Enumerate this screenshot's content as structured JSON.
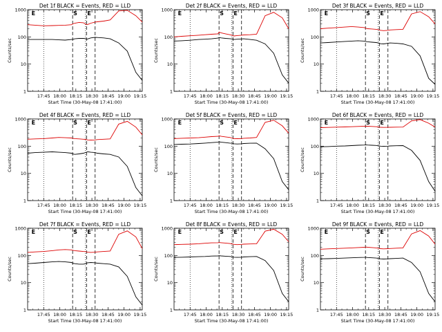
{
  "chart_data": {
    "type": "line",
    "yscale": "log",
    "ylim": [
      1,
      1000
    ],
    "ytick_labels": [
      "1",
      "10",
      "100",
      "1000"
    ],
    "xtick_labels": [
      "17:45",
      "18:00",
      "18:15",
      "18:30",
      "18:45",
      "19:00",
      "19:15"
    ],
    "xlim_minutes": [
      -15,
      92
    ],
    "xlabel": "Start Time (30-May-08 17:41:00)",
    "ylabel": "Counts/sec",
    "dotted_lines": [
      0,
      39
    ],
    "dashed_lines": [
      27,
      40,
      48
    ],
    "markers": [
      {
        "label": "S",
        "x": 27
      },
      {
        "label": "E",
        "x": 40
      },
      {
        "label": "E",
        "x": -12
      }
    ],
    "panels": [
      {
        "title": "Det 1f BLACK = Events, RED = LLD",
        "series": [
          {
            "color": "#000000",
            "x": [
              -15,
              -8,
              0,
              8,
              14,
              20,
              26,
              27,
              29,
              33,
              37,
              39,
              40,
              41,
              44,
              48,
              50,
              56,
              62,
              70,
              78,
              86,
              92
            ],
            "values": [
              80,
              80,
              80,
              80,
              78,
              76,
              80,
              80,
              85,
              88,
              88,
              86,
              82,
              84,
              92,
              96,
              95,
              92,
              85,
              60,
              30,
              5,
              2.5
            ]
          },
          {
            "color": "#dd0000",
            "x": [
              -15,
              -8,
              0,
              8,
              14,
              20,
              26,
              27,
              29,
              33,
              37,
              39,
              40,
              41,
              44,
              48,
              50,
              56,
              62,
              70,
              78,
              86,
              92
            ],
            "values": [
              280,
              270,
              255,
              260,
              265,
              270,
              280,
              300,
              320,
              340,
              330,
              300,
              280,
              285,
              320,
              350,
              360,
              380,
              420,
              900,
              950,
              600,
              350
            ]
          }
        ]
      },
      {
        "title": "Det 2f BLACK = Events, RED = LLD",
        "series": [
          {
            "color": "#000000",
            "x": [
              -15,
              -8,
              0,
              8,
              14,
              20,
              26,
              27,
              29,
              33,
              37,
              39,
              40,
              41,
              44,
              48,
              50,
              56,
              62,
              70,
              78,
              86,
              92
            ],
            "values": [
              70,
              72,
              75,
              80,
              82,
              85,
              90,
              95,
              92,
              88,
              86,
              84,
              82,
              80,
              82,
              84,
              85,
              80,
              75,
              55,
              25,
              4,
              2
            ]
          },
          {
            "color": "#dd0000",
            "x": [
              -15,
              -8,
              0,
              8,
              14,
              20,
              26,
              27,
              29,
              33,
              37,
              39,
              40,
              41,
              44,
              48,
              50,
              56,
              62,
              70,
              78,
              86,
              92
            ],
            "values": [
              100,
              105,
              110,
              115,
              120,
              125,
              130,
              150,
              140,
              130,
              120,
              115,
              110,
              108,
              112,
              115,
              118,
              120,
              125,
              600,
              800,
              500,
              200
            ]
          }
        ]
      },
      {
        "title": "Det 3f BLACK = Events, RED = LLD",
        "series": [
          {
            "color": "#000000",
            "x": [
              -15,
              -8,
              0,
              8,
              14,
              20,
              26,
              27,
              29,
              33,
              37,
              39,
              40,
              41,
              44,
              48,
              50,
              56,
              62,
              70,
              78,
              86,
              92
            ],
            "values": [
              60,
              62,
              65,
              68,
              70,
              72,
              70,
              68,
              66,
              64,
              62,
              60,
              58,
              56,
              55,
              58,
              60,
              58,
              55,
              45,
              20,
              3,
              1.8
            ]
          },
          {
            "color": "#dd0000",
            "x": [
              -15,
              -8,
              0,
              8,
              14,
              20,
              26,
              27,
              29,
              33,
              37,
              39,
              40,
              41,
              44,
              48,
              50,
              56,
              62,
              70,
              78,
              86,
              92
            ],
            "values": [
              200,
              210,
              220,
              230,
              240,
              230,
              220,
              210,
              200,
              195,
              190,
              185,
              180,
              175,
              170,
              175,
              180,
              185,
              190,
              700,
              850,
              550,
              300
            ]
          }
        ]
      },
      {
        "title": "Det 4f BLACK = Events, RED = LLD",
        "series": [
          {
            "color": "#000000",
            "x": [
              -15,
              -8,
              0,
              8,
              14,
              20,
              26,
              27,
              29,
              33,
              37,
              39,
              40,
              41,
              44,
              48,
              50,
              56,
              62,
              70,
              78,
              86,
              92
            ],
            "values": [
              55,
              58,
              60,
              62,
              60,
              58,
              55,
              52,
              50,
              52,
              55,
              58,
              60,
              62,
              60,
              58,
              55,
              52,
              50,
              40,
              18,
              3,
              1.5
            ]
          },
          {
            "color": "#dd0000",
            "x": [
              -15,
              -8,
              0,
              8,
              14,
              20,
              26,
              27,
              29,
              33,
              37,
              39,
              40,
              41,
              44,
              48,
              50,
              56,
              62,
              70,
              78,
              86,
              92
            ],
            "values": [
              180,
              185,
              190,
              200,
              210,
              205,
              200,
              195,
              190,
              185,
              180,
              178,
              175,
              170,
              168,
              170,
              175,
              180,
              185,
              650,
              820,
              500,
              260
            ]
          }
        ]
      },
      {
        "title": "Det 5f BLACK = Events, RED = LLD",
        "series": [
          {
            "color": "#000000",
            "x": [
              -15,
              -8,
              0,
              8,
              14,
              20,
              26,
              27,
              29,
              33,
              37,
              39,
              40,
              41,
              44,
              48,
              50,
              56,
              62,
              70,
              78,
              86,
              92
            ],
            "values": [
              115,
              118,
              120,
              125,
              130,
              135,
              140,
              145,
              140,
              135,
              130,
              128,
              125,
              122,
              120,
              122,
              125,
              128,
              130,
              80,
              35,
              5,
              2.5
            ]
          },
          {
            "color": "#dd0000",
            "x": [
              -15,
              -8,
              0,
              8,
              14,
              20,
              26,
              27,
              29,
              33,
              37,
              39,
              40,
              41,
              44,
              48,
              50,
              56,
              62,
              70,
              78,
              86,
              92
            ],
            "values": [
              190,
              195,
              200,
              205,
              215,
              225,
              230,
              240,
              230,
              220,
              210,
              200,
              195,
              190,
              188,
              190,
              195,
              200,
              210,
              750,
              900,
              560,
              300
            ]
          }
        ]
      },
      {
        "title": "Det 6f BLACK = Events, RED = LLD",
        "series": [
          {
            "color": "#000000",
            "x": [
              -15,
              -8,
              0,
              8,
              14,
              20,
              26,
              27,
              29,
              33,
              37,
              39,
              40,
              41,
              44,
              48,
              50,
              56,
              62,
              70,
              78,
              86,
              92
            ],
            "values": [
              95,
              97,
              100,
              102,
              105,
              108,
              110,
              112,
              110,
              108,
              106,
              104,
              102,
              100,
              99,
              100,
              102,
              104,
              105,
              70,
              30,
              5,
              2.2
            ]
          },
          {
            "color": "#dd0000",
            "x": [
              -15,
              -8,
              0,
              8,
              14,
              20,
              26,
              27,
              29,
              33,
              37,
              39,
              40,
              41,
              44,
              48,
              50,
              56,
              62,
              70,
              78,
              86,
              92
            ],
            "values": [
              480,
              490,
              500,
              510,
              520,
              530,
              540,
              545,
              540,
              530,
              520,
              510,
              500,
              495,
              490,
              492,
              495,
              500,
              505,
              850,
              950,
              700,
              500
            ]
          }
        ]
      },
      {
        "title": "Det 7f BLACK = Events, RED = LLD",
        "series": [
          {
            "color": "#000000",
            "x": [
              -15,
              -8,
              0,
              8,
              14,
              20,
              26,
              27,
              29,
              33,
              37,
              39,
              40,
              41,
              44,
              48,
              50,
              56,
              62,
              70,
              78,
              86,
              92
            ],
            "values": [
              50,
              52,
              55,
              58,
              60,
              58,
              55,
              52,
              50,
              48,
              48,
              50,
              52,
              54,
              55,
              54,
              52,
              50,
              48,
              38,
              17,
              3,
              1.5
            ]
          },
          {
            "color": "#dd0000",
            "x": [
              -15,
              -8,
              0,
              8,
              14,
              20,
              26,
              27,
              29,
              33,
              37,
              39,
              40,
              41,
              44,
              48,
              50,
              56,
              62,
              70,
              78,
              86,
              92
            ],
            "values": [
              130,
              135,
              140,
              150,
              160,
              165,
              160,
              155,
              150,
              145,
              140,
              138,
              135,
              132,
              130,
              132,
              135,
              140,
              145,
              600,
              800,
              480,
              180
            ]
          }
        ]
      },
      {
        "title": "Det 8f BLACK = Events, RED = LLD",
        "series": [
          {
            "color": "#000000",
            "x": [
              -15,
              -8,
              0,
              8,
              14,
              20,
              26,
              27,
              29,
              33,
              37,
              39,
              40,
              41,
              44,
              48,
              50,
              56,
              62,
              70,
              78,
              86,
              92
            ],
            "values": [
              85,
              86,
              88,
              90,
              92,
              95,
              96,
              98,
              96,
              94,
              92,
              90,
              88,
              86,
              85,
              86,
              88,
              90,
              92,
              65,
              28,
              4,
              2
            ]
          },
          {
            "color": "#dd0000",
            "x": [
              -15,
              -8,
              0,
              8,
              14,
              20,
              26,
              27,
              29,
              33,
              37,
              39,
              40,
              41,
              44,
              48,
              50,
              56,
              62,
              70,
              78,
              86,
              92
            ],
            "values": [
              250,
              255,
              260,
              270,
              280,
              290,
              295,
              300,
              295,
              285,
              275,
              265,
              260,
              255,
              250,
              255,
              260,
              265,
              270,
              780,
              920,
              600,
              320
            ]
          }
        ]
      },
      {
        "title": "Det 9f BLACK = Events, RED = LLD",
        "series": [
          {
            "color": "#000000",
            "x": [
              -15,
              -8,
              0,
              8,
              14,
              20,
              26,
              27,
              29,
              33,
              37,
              39,
              40,
              41,
              44,
              48,
              50,
              56,
              62,
              70,
              78,
              86,
              92
            ],
            "values": [
              75,
              76,
              78,
              80,
              82,
              84,
              85,
              86,
              84,
              82,
              80,
              78,
              76,
              75,
              74,
              75,
              76,
              78,
              80,
              55,
              25,
              4,
              2
            ]
          },
          {
            "color": "#dd0000",
            "x": [
              -15,
              -8,
              0,
              8,
              14,
              20,
              26,
              27,
              29,
              33,
              37,
              39,
              40,
              41,
              44,
              48,
              50,
              56,
              62,
              70,
              78,
              86,
              92
            ],
            "values": [
              170,
              175,
              180,
              185,
              190,
              195,
              200,
              205,
              200,
              195,
              190,
              185,
              180,
              178,
              175,
              178,
              180,
              185,
              190,
              620,
              820,
              520,
              260
            ]
          }
        ]
      }
    ]
  }
}
